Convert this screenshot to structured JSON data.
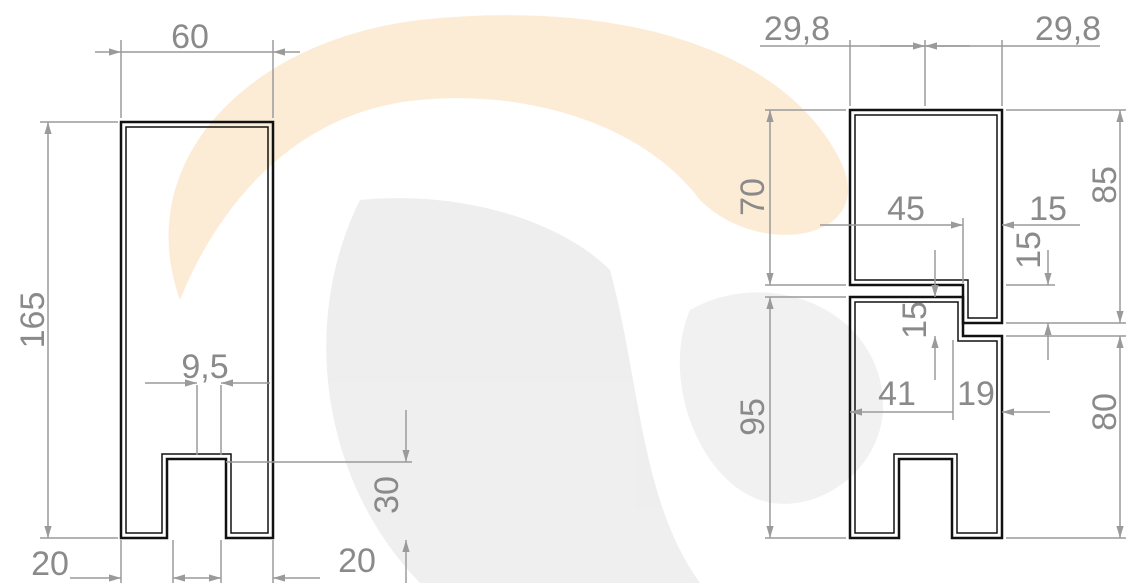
{
  "left_profile": {
    "dimensions": [
      "60",
      "165",
      "9,5",
      "30",
      "20",
      "20"
    ]
  },
  "right_profile": {
    "dimensions": [
      "29,8",
      "29,8",
      "70",
      "45",
      "15",
      "85",
      "15",
      "15",
      "95",
      "41",
      "19",
      "80"
    ]
  }
}
